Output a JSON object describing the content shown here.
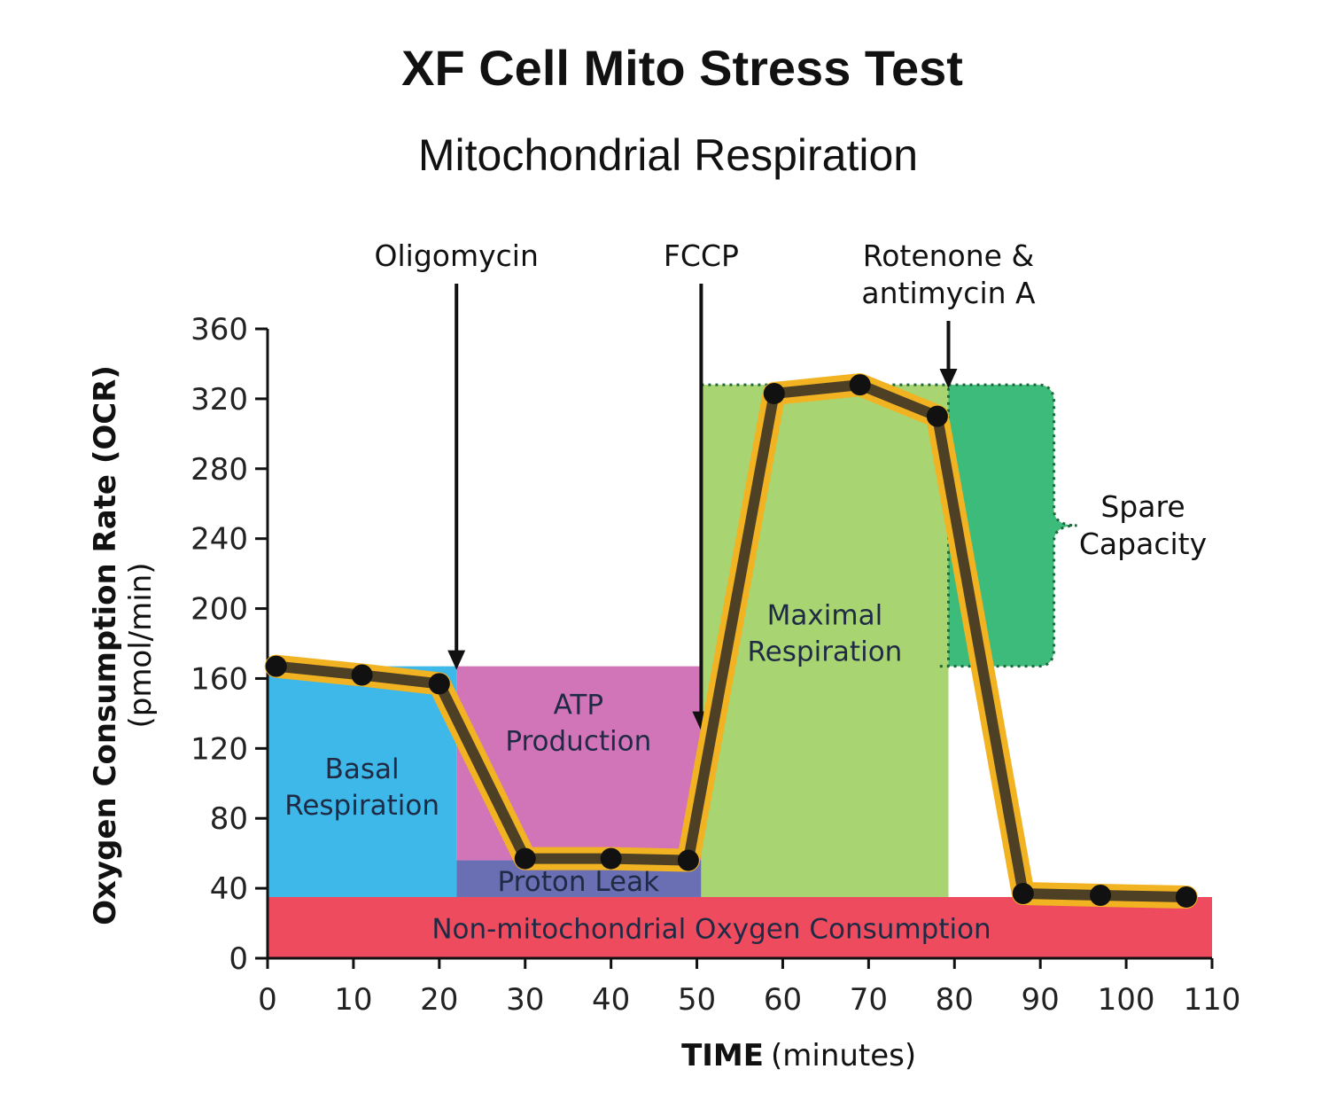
{
  "chart_data": {
    "type": "line",
    "title": "XF Cell Mito Stress Test",
    "subtitle": "Mitochondrial Respiration",
    "xlabel_bold": "TIME",
    "xlabel_unit": "(minutes)",
    "ylabel_bold": "Oxygen Consumption Rate (OCR)",
    "ylabel_unit": "(pmol/min)",
    "xlim": [
      0,
      110
    ],
    "ylim": [
      0,
      360
    ],
    "x_ticks": [
      0,
      10,
      20,
      30,
      40,
      50,
      60,
      70,
      80,
      90,
      100,
      110
    ],
    "y_ticks": [
      0,
      40,
      80,
      120,
      160,
      200,
      240,
      280,
      320,
      360
    ],
    "grid": false,
    "series": [
      {
        "x": [
          1,
          11,
          20,
          30,
          40,
          49,
          59,
          69,
          78,
          88,
          97,
          107
        ],
        "y": [
          167,
          162,
          157,
          57,
          57,
          56,
          323,
          328,
          310,
          37,
          36,
          35
        ]
      }
    ],
    "injections": [
      {
        "label": "Oligomycin",
        "x": 22
      },
      {
        "label": "FCCP",
        "x": 50.5
      },
      {
        "label": "Rotenone &\nantimycin A",
        "x": 79.3
      }
    ],
    "regions": [
      {
        "label": "Basal\nRespiration",
        "x": [
          0,
          22
        ],
        "y": [
          35,
          167
        ],
        "color": "#3db8e8"
      },
      {
        "label": "ATP\nProduction",
        "x": [
          22,
          50.5
        ],
        "y": [
          56,
          167
        ],
        "color": "#d275b8"
      },
      {
        "label": "Proton Leak",
        "x": [
          22,
          50.5
        ],
        "y": [
          35,
          56
        ],
        "color": "#6a6fb4"
      },
      {
        "label": "Maximal\nRespiration",
        "x": [
          50.5,
          79.3
        ],
        "y": [
          35,
          328
        ],
        "color": "#a8d472"
      },
      {
        "label": "Non-mitochondrial Oxygen Consumption",
        "x": [
          0,
          110
        ],
        "y": [
          0,
          35
        ],
        "color": "#ee4c5e"
      }
    ],
    "spare_capacity": {
      "label": "Spare\nCapacity",
      "x": [
        79.3,
        92
      ],
      "y": [
        167,
        328
      ],
      "color": "#3dbb7a"
    },
    "colors": {
      "line_highlight": "#f2b322",
      "line": "#4d4024",
      "marker": "#111111"
    }
  }
}
